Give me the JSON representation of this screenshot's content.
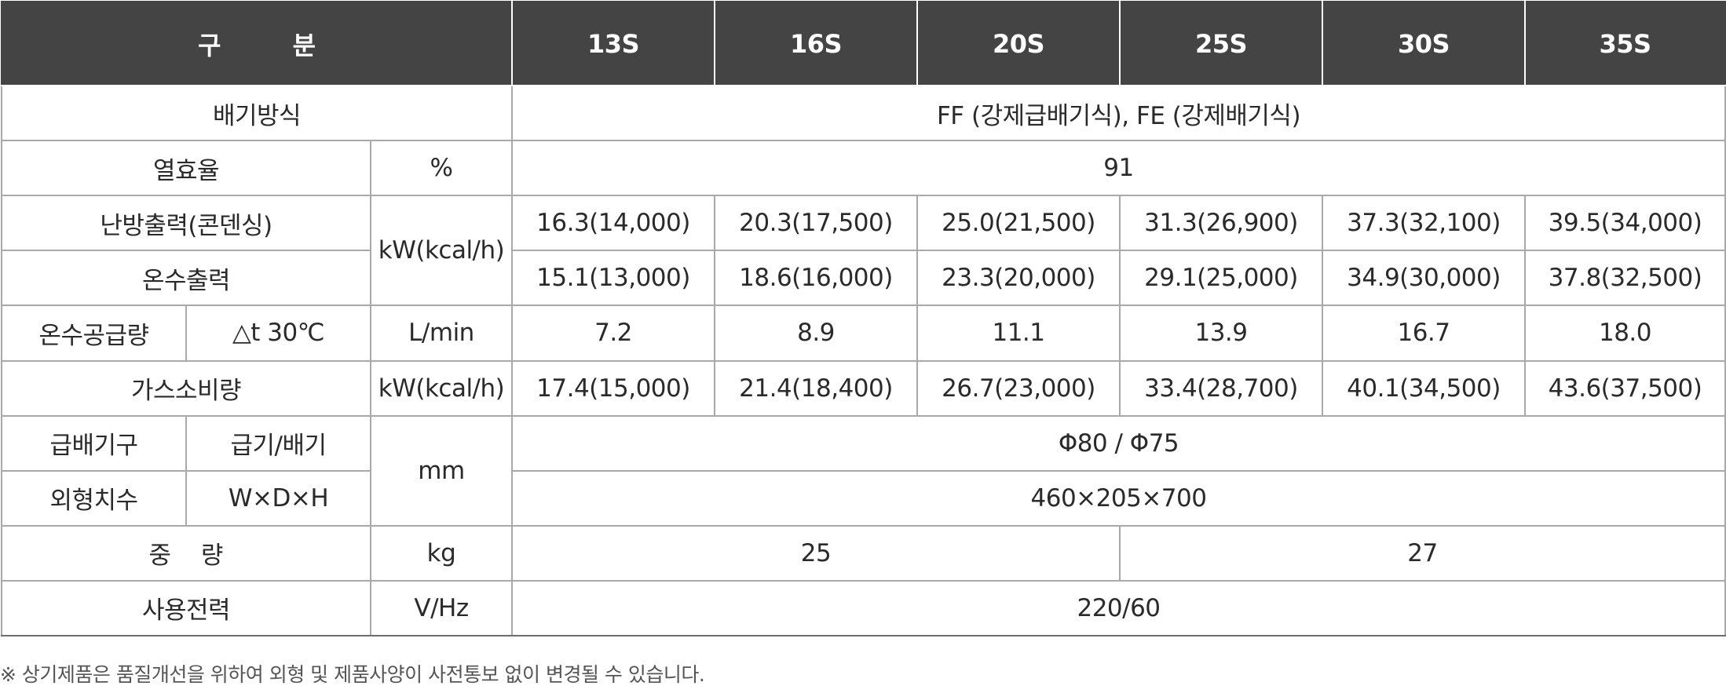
{
  "header": {
    "label": "구 분",
    "models": [
      "13S",
      "16S",
      "20S",
      "25S",
      "30S",
      "35S"
    ]
  },
  "rows": {
    "exhaust": {
      "label": "배기방식",
      "value": "FF (강제급배기식), FE (강제배기식)"
    },
    "efficiency": {
      "label": "열효율",
      "unit": "%",
      "value": "91"
    },
    "heating": {
      "label": "난방출력(콘덴싱)",
      "values": [
        "16.3(14,000)",
        "20.3(17,500)",
        "25.0(21,500)",
        "31.3(26,900)",
        "37.3(32,100)",
        "39.5(34,000)"
      ]
    },
    "power_unit": "kW(kcal/h)",
    "hotwater": {
      "label": "온수출력",
      "values": [
        "15.1(13,000)",
        "18.6(16,000)",
        "23.3(20,000)",
        "29.1(25,000)",
        "34.9(30,000)",
        "37.8(32,500)"
      ]
    },
    "supply": {
      "label": "온수공급량",
      "condition": "△t 30℃",
      "unit": "L/min",
      "values": [
        "7.2",
        "8.9",
        "11.1",
        "13.9",
        "16.7",
        "18.0"
      ]
    },
    "gas": {
      "label": "가스소비량",
      "unit": "kW(kcal/h)",
      "values": [
        "17.4(15,000)",
        "21.4(18,400)",
        "26.7(23,000)",
        "33.4(28,700)",
        "40.1(34,500)",
        "43.6(37,500)"
      ]
    },
    "mm_unit": "mm",
    "pipe": {
      "group": "급배기구",
      "label": "급기/배기",
      "value": "Φ80 / Φ75"
    },
    "dims": {
      "group": "외형치수",
      "label": "W×D×H",
      "value": "460×205×700"
    },
    "weight": {
      "label": "중 량",
      "unit": "kg",
      "values": [
        "25",
        "27"
      ]
    },
    "power": {
      "label": "사용전력",
      "unit": "V/Hz",
      "value": "220/60"
    }
  },
  "note": "※ 상기제품은 품질개선을 위하여 외형 및 제품사양이 사전통보 없이 변경될 수 있습니다."
}
